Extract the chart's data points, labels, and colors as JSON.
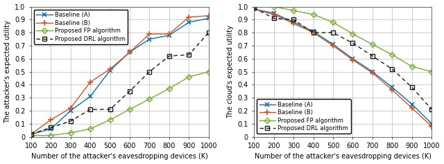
{
  "x": [
    100,
    200,
    300,
    400,
    500,
    600,
    700,
    800,
    900,
    1000
  ],
  "left": {
    "ylabel": "The attacker's expected utility",
    "xlabel": "Number of the attacker's eavesdropping devices (K)",
    "ylim": [
      0,
      1.0
    ],
    "yticks": [
      0,
      0.1,
      0.2,
      0.3,
      0.4,
      0.5,
      0.6,
      0.7,
      0.8,
      0.9,
      1.0
    ],
    "baseline_A": [
      0.02,
      0.06,
      0.2,
      0.31,
      0.51,
      0.65,
      0.75,
      0.78,
      0.88,
      0.91
    ],
    "baseline_B": [
      0.02,
      0.13,
      0.22,
      0.42,
      0.52,
      0.65,
      0.79,
      0.79,
      0.92,
      0.93
    ],
    "fp": [
      0.01,
      0.01,
      0.03,
      0.06,
      0.13,
      0.21,
      0.29,
      0.37,
      0.46,
      0.5
    ],
    "drl": [
      0.02,
      0.07,
      0.12,
      0.21,
      0.21,
      0.35,
      0.5,
      0.62,
      0.63,
      0.8
    ],
    "legend_loc": "upper left"
  },
  "right": {
    "ylabel": "The cloud's expected utility",
    "xlabel": "Number of the attacker's eavesdropping devices (K)",
    "ylim": [
      0,
      1.0
    ],
    "yticks": [
      0,
      0.1,
      0.2,
      0.3,
      0.4,
      0.5,
      0.6,
      0.7,
      0.8,
      0.9,
      1.0
    ],
    "baseline_A": [
      0.98,
      0.95,
      0.88,
      0.81,
      0.71,
      0.6,
      0.5,
      0.38,
      0.25,
      0.1
    ],
    "baseline_B": [
      0.98,
      0.94,
      0.87,
      0.8,
      0.7,
      0.59,
      0.49,
      0.36,
      0.22,
      0.08
    ],
    "fp": [
      1.0,
      1.0,
      0.97,
      0.94,
      0.88,
      0.79,
      0.71,
      0.63,
      0.54,
      0.5
    ],
    "drl": [
      0.99,
      0.91,
      0.9,
      0.8,
      0.8,
      0.72,
      0.62,
      0.52,
      0.38,
      0.21
    ],
    "legend_loc": "lower left"
  },
  "colors": {
    "baseline_A": "#0072BD",
    "baseline_B": "#D95319",
    "fp": "#77AC30",
    "drl": "#1a1a1a"
  },
  "labels": {
    "baseline_A": "Baseline (A)",
    "baseline_B": "Baseline (B)",
    "fp": "Proposed FP algorithm",
    "drl": "Proposed DRL algorithm"
  },
  "tick_fontsize": 7,
  "label_fontsize": 7,
  "legend_fontsize": 6
}
